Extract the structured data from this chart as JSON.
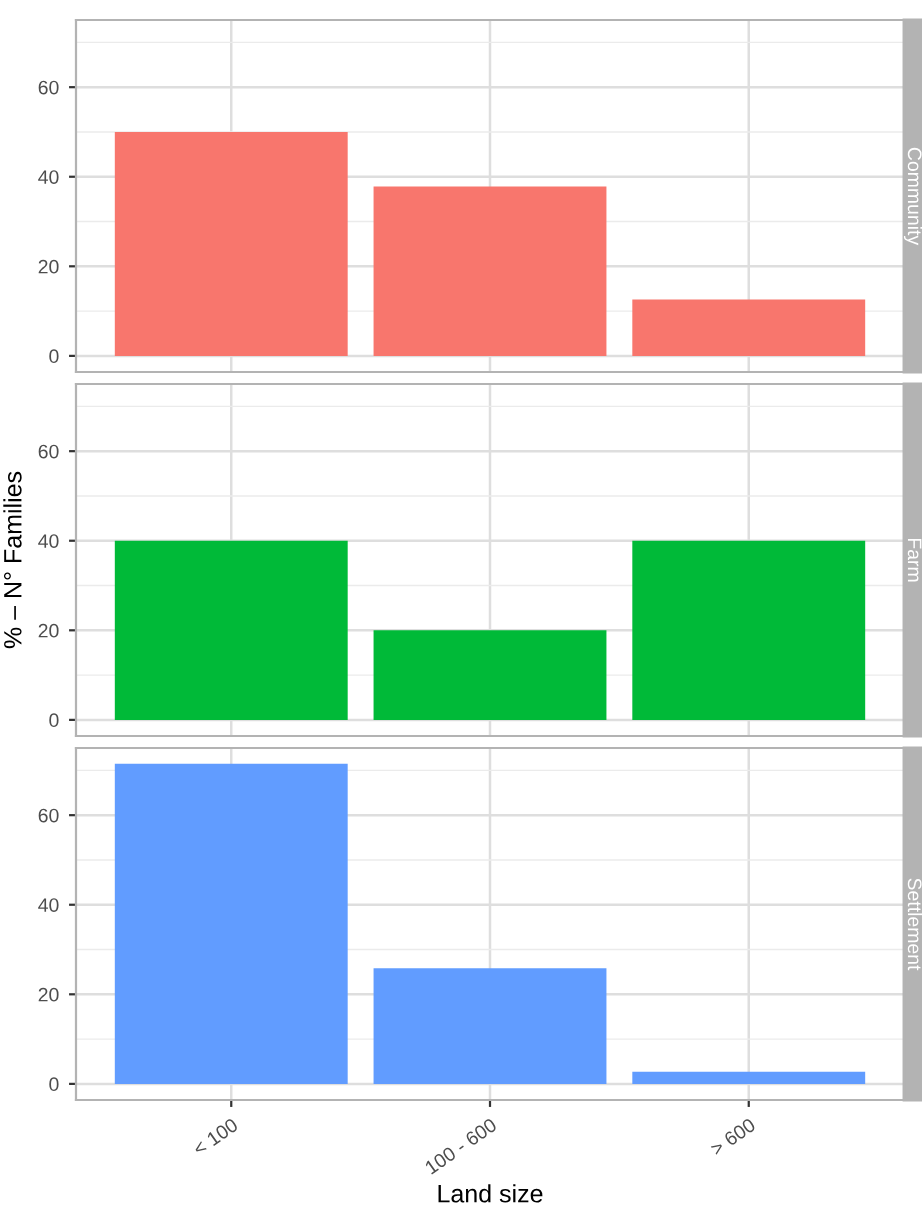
{
  "chart_data": [
    {
      "type": "bar",
      "title": "Community",
      "categories": [
        null,
        null,
        null
      ],
      "values": [
        50,
        37.8,
        12.6
      ],
      "color": "#f8766d",
      "ylim": [
        -3.6,
        75
      ],
      "yticks": [
        0,
        20,
        40,
        60
      ],
      "grid": true,
      "tick_labels": "y"
    },
    {
      "type": "bar",
      "title": "Farm",
      "categories": [
        null,
        null,
        null
      ],
      "values": [
        40,
        20,
        40
      ],
      "color": "#00ba38",
      "ylim": [
        -3.6,
        75
      ],
      "yticks": [
        0,
        20,
        40,
        60
      ],
      "grid": true,
      "tick_labels": "y",
      "ylabel": "% – N° Families"
    },
    {
      "type": "bar",
      "title": "Settlement",
      "categories": [
        "< 100",
        "100 - 600",
        "> 600"
      ],
      "values": [
        71.5,
        25.8,
        2.7
      ],
      "color": "#619cff",
      "ylim": [
        -3.6,
        75
      ],
      "yticks": [
        0,
        20,
        40,
        60
      ],
      "grid": true,
      "xlabel": "Land size"
    }
  ]
}
